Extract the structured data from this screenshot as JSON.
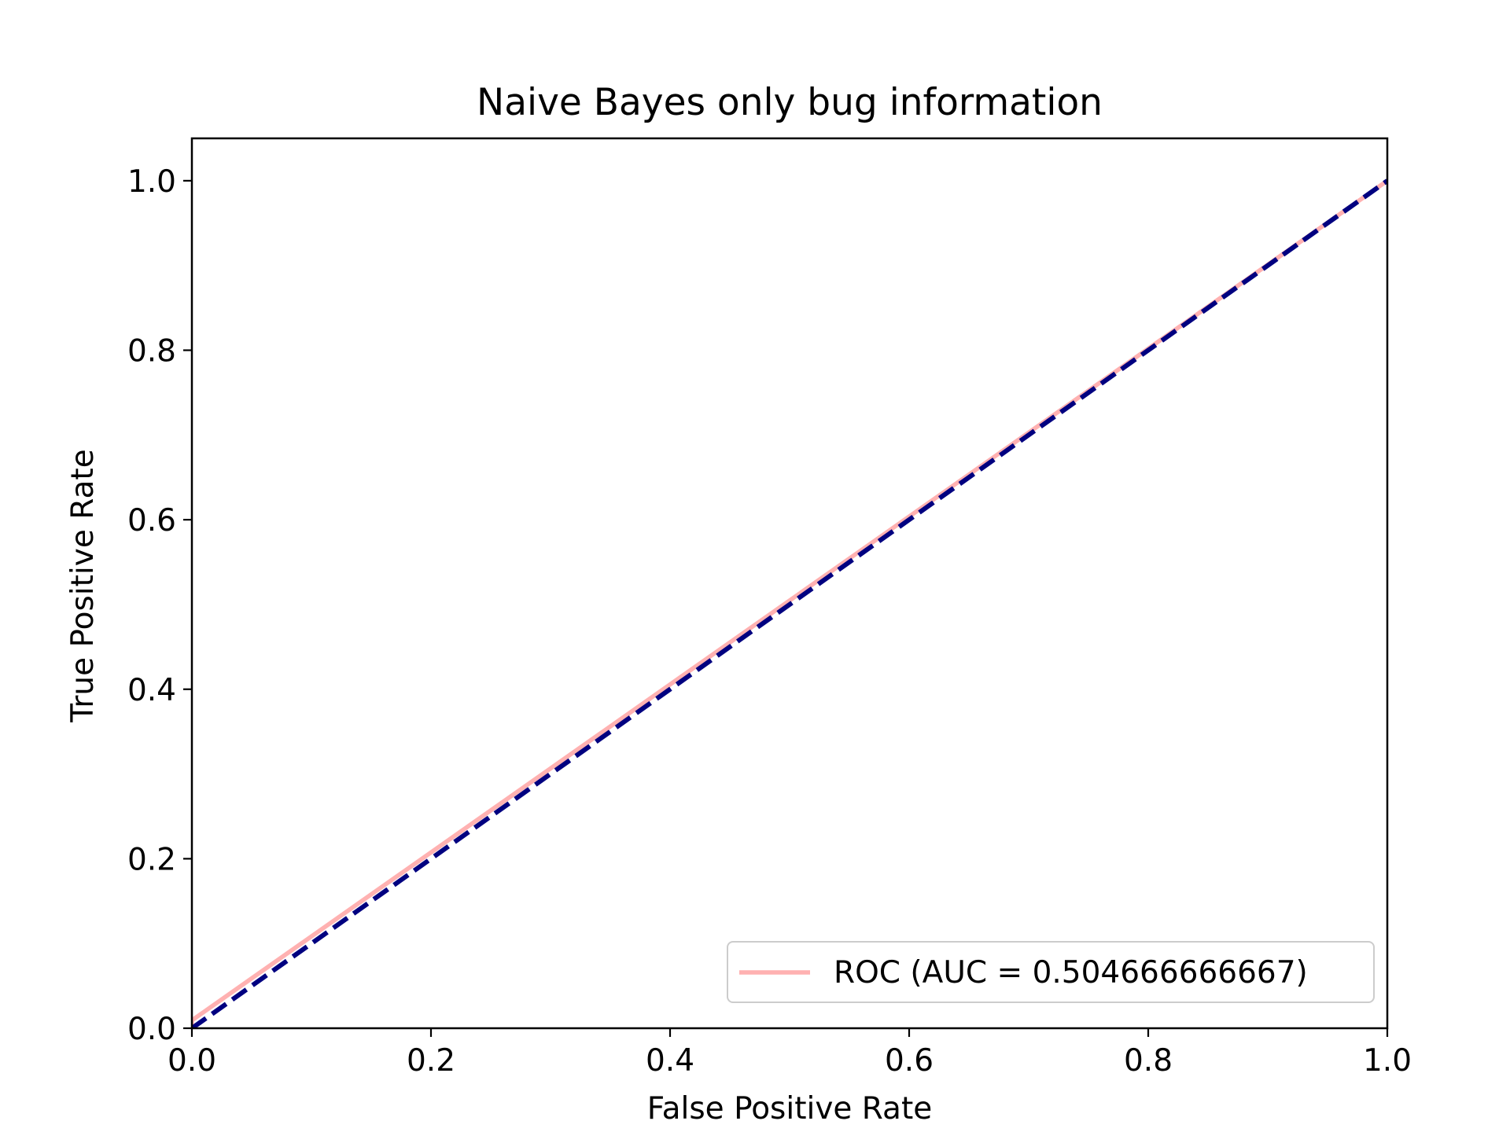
{
  "chart_data": {
    "type": "line",
    "title": "Naive Bayes only bug information",
    "xlabel": "False Positive Rate",
    "ylabel": "True Positive Rate",
    "xlim": [
      0.0,
      1.0
    ],
    "ylim": [
      0.0,
      1.05
    ],
    "xticks": [
      "0.0",
      "0.2",
      "0.4",
      "0.6",
      "0.8",
      "1.0"
    ],
    "yticks": [
      "0.0",
      "0.2",
      "0.4",
      "0.6",
      "0.8",
      "1.0"
    ],
    "grid": false,
    "legend_position": "lower-right",
    "series": [
      {
        "name": "ROC (AUC = 0.504666666667)",
        "color": "#ffb1b1",
        "style": "solid",
        "x": [
          0.0,
          0.0,
          1.0
        ],
        "y": [
          0.0,
          0.0093,
          1.0
        ]
      },
      {
        "color": "#000080",
        "style": "dashed",
        "x": [
          0.0,
          1.0
        ],
        "y": [
          0.0,
          1.0
        ]
      }
    ]
  }
}
